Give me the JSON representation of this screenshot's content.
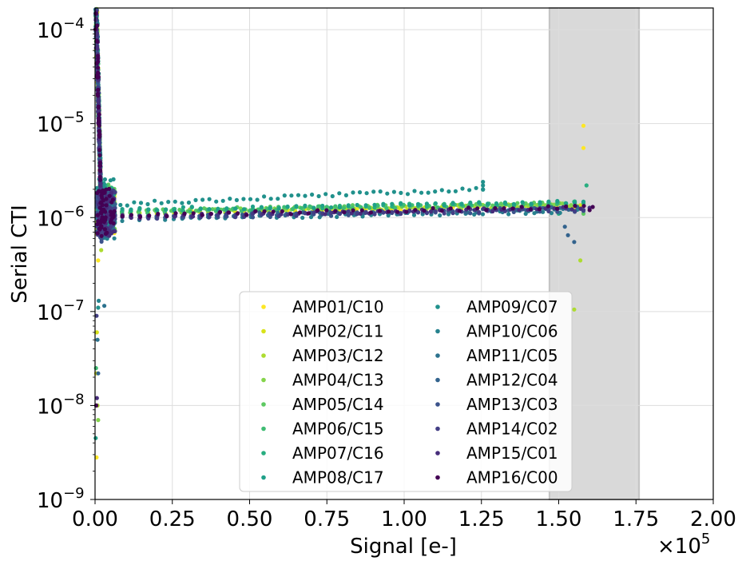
{
  "chart_data": {
    "type": "scatter",
    "title": "",
    "xlabel": "Signal [e-]",
    "ylabel": "Serial CTI",
    "x_multiplier": "×10",
    "x_multiplier_exp": "5",
    "xlim": [
      0,
      2.0
    ],
    "ylim": [
      1e-09,
      0.00017
    ],
    "yscale": "log",
    "grid": true,
    "legend_position": "lower center",
    "xticks": [
      "0.00",
      "0.25",
      "0.50",
      "0.75",
      "1.00",
      "1.25",
      "1.50",
      "1.75",
      "2.00"
    ],
    "ytick_mantissa": "10",
    "yticks": [
      "-4",
      "-5",
      "-6",
      "-7",
      "-8",
      "-9"
    ],
    "shaded_region": {
      "x_start": 1.47,
      "x_end": 1.76,
      "color": "#d9d9d9"
    },
    "series": [
      {
        "name": "AMP01/C10",
        "color": "#fde725",
        "plateau": 1.18e-06,
        "end_x": 1.58,
        "tail_points": [
          [
            1.58,
            9.5e-06
          ],
          [
            1.58,
            5.5e-06
          ]
        ],
        "low_points": [
          [
            0.005,
            2.8e-09
          ],
          [
            0.01,
            3.5e-07
          ]
        ]
      },
      {
        "name": "AMP02/C11",
        "color": "#d8e219",
        "plateau": 1.2e-06,
        "end_x": 1.57,
        "tail_points": [],
        "low_points": [
          [
            0.006,
            6e-08
          ],
          [
            0.004,
            2.2e-08
          ]
        ]
      },
      {
        "name": "AMP03/C12",
        "color": "#addc30",
        "plateau": 1.23e-06,
        "end_x": 1.56,
        "tail_points": [
          [
            1.55,
            1.05e-07
          ],
          [
            1.57,
            3.5e-07
          ]
        ],
        "low_points": [
          [
            0.008,
            1e-08
          ],
          [
            0.02,
            4.5e-07
          ]
        ]
      },
      {
        "name": "AMP04/C13",
        "color": "#84d44b",
        "plateau": 1.25e-06,
        "end_x": 1.54,
        "tail_points": [],
        "low_points": [
          [
            0.01,
            7e-09
          ]
        ]
      },
      {
        "name": "AMP05/C14",
        "color": "#5ec962",
        "plateau": 1.28e-06,
        "end_x": 1.5,
        "tail_points": [
          [
            1.58,
            1.1e-06
          ]
        ],
        "low_points": []
      },
      {
        "name": "AMP06/C15",
        "color": "#3fbc73",
        "plateau": 1.27e-06,
        "end_x": 1.55,
        "tail_points": [],
        "low_points": [
          [
            0.003,
            2.5e-08
          ]
        ]
      },
      {
        "name": "AMP07/C16",
        "color": "#28ae80",
        "plateau": 1.3e-06,
        "end_x": 1.58,
        "tail_points": [
          [
            1.59,
            2.2e-06
          ],
          [
            1.5,
            1.1e-06
          ]
        ],
        "low_points": []
      },
      {
        "name": "AMP08/C17",
        "color": "#1fa088",
        "plateau": 1.32e-06,
        "end_x": 1.58,
        "tail_points": [],
        "low_points": [
          [
            0.002,
            4.5e-09
          ]
        ]
      },
      {
        "name": "AMP09/C07",
        "color": "#21918c",
        "plateau": 1.45e-06,
        "end_x": 1.255,
        "tail_points": [
          [
            1.255,
            2.4e-06
          ],
          [
            1.255,
            2.2e-06
          ],
          [
            1.255,
            2e-06
          ]
        ],
        "low_points": [
          [
            0.01,
            1.1e-07
          ]
        ]
      },
      {
        "name": "AMP10/C06",
        "color": "#26828e",
        "plateau": 1.05e-06,
        "end_x": 1.56,
        "tail_points": [],
        "low_points": [
          [
            0.012,
            1.3e-07
          ]
        ]
      },
      {
        "name": "AMP11/C05",
        "color": "#2c728e",
        "plateau": 1.1e-06,
        "end_x": 1.57,
        "tail_points": [],
        "low_points": [
          [
            0.008,
            5e-08
          ],
          [
            0.03,
            1.15e-07
          ]
        ]
      },
      {
        "name": "AMP12/C04",
        "color": "#33638d",
        "plateau": 1.12e-06,
        "end_x": 1.56,
        "tail_points": [
          [
            1.53,
            6.5e-07
          ],
          [
            1.55,
            5.5e-07
          ],
          [
            1.52,
            8e-07
          ]
        ],
        "low_points": [
          [
            0.01,
            2.2e-08
          ]
        ]
      },
      {
        "name": "AMP13/C03",
        "color": "#3b528b",
        "plateau": 1.08e-06,
        "end_x": 1.58,
        "tail_points": [],
        "low_points": []
      },
      {
        "name": "AMP14/C02",
        "color": "#433e85",
        "plateau": 1.1e-06,
        "end_x": 1.58,
        "tail_points": [],
        "low_points": [
          [
            0.005,
            9e-08
          ]
        ]
      },
      {
        "name": "AMP15/C01",
        "color": "#472d7b",
        "plateau": 1.13e-06,
        "end_x": 1.6,
        "tail_points": [],
        "low_points": [
          [
            0.006,
            1.2e-08
          ]
        ]
      },
      {
        "name": "AMP16/C00",
        "color": "#440154",
        "plateau": 1.15e-06,
        "end_x": 1.61,
        "tail_points": [
          [
            1.6,
            1.2e-06
          ]
        ],
        "low_points": [
          [
            0.004,
            1e-08
          ]
        ]
      }
    ]
  }
}
